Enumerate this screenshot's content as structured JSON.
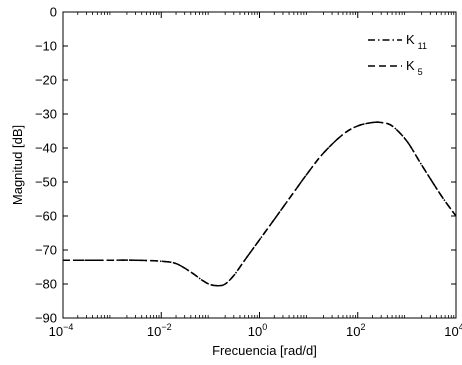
{
  "chart_data": {
    "type": "line",
    "title": "",
    "xlabel": "Frecuencia [rad/d]",
    "ylabel": "Magnitud [dB]",
    "xscale": "log",
    "xlim": [
      0.0001,
      10000
    ],
    "ylim": [
      -90,
      0
    ],
    "x_ticks": [
      {
        "base": "10",
        "exp": "−4"
      },
      {
        "base": "10",
        "exp": "−2"
      },
      {
        "base": "10",
        "exp": "0"
      },
      {
        "base": "10",
        "exp": "2"
      },
      {
        "base": "10",
        "exp": "4"
      }
    ],
    "y_ticks": [
      "0",
      "−10",
      "−20",
      "−30",
      "−40",
      "−50",
      "−60",
      "−70",
      "−80",
      "−90"
    ],
    "grid": false,
    "legend_position": "top-right",
    "series": [
      {
        "name": "K",
        "subscript": "11",
        "color": "#000000",
        "dash": "dash-dot",
        "x": [
          0.0001,
          0.001,
          0.003,
          0.01,
          0.02,
          0.04,
          0.07,
          0.1,
          0.15,
          0.2,
          0.3,
          0.5,
          1,
          2,
          5,
          10,
          20,
          50,
          100,
          200,
          300,
          500,
          1000,
          2000,
          5000,
          10000
        ],
        "y": [
          -73,
          -73,
          -73,
          -73.3,
          -74,
          -76.5,
          -79,
          -80.2,
          -80.5,
          -80,
          -77.5,
          -73,
          -67,
          -61,
          -53,
          -47,
          -41.5,
          -36,
          -33.5,
          -32.5,
          -32.5,
          -33.5,
          -38,
          -45,
          -54,
          -60
        ]
      },
      {
        "name": "K",
        "subscript": "5",
        "color": "#000000",
        "dash": "dashed",
        "x": [
          0.0001,
          0.001,
          0.003,
          0.01,
          0.02,
          0.04,
          0.07,
          0.1,
          0.15,
          0.2,
          0.3,
          0.5,
          1,
          2,
          5,
          10,
          20,
          50,
          100,
          200,
          300,
          500,
          1000,
          2000,
          5000,
          10000
        ],
        "y": [
          -73,
          -73,
          -73,
          -73.3,
          -74,
          -76.5,
          -79,
          -80.2,
          -80.5,
          -80,
          -77.5,
          -73,
          -67,
          -61,
          -53,
          -47,
          -41.5,
          -36,
          -33.5,
          -32.5,
          -32.5,
          -33.5,
          -38,
          -45,
          -54,
          -60
        ]
      }
    ]
  }
}
